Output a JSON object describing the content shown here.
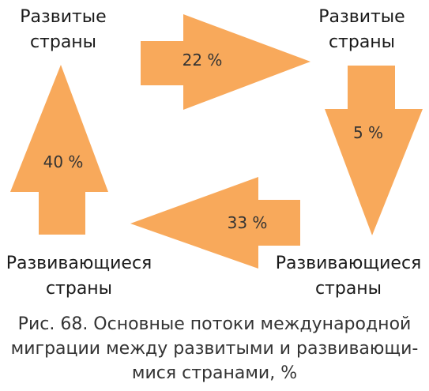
{
  "nodes": {
    "top_left": {
      "line1": "Развитые",
      "line2": "страны"
    },
    "top_right": {
      "line1": "Развитые",
      "line2": "страны"
    },
    "bottom_left": {
      "line1": "Развивающиеся",
      "line2": "страны"
    },
    "bottom_right": {
      "line1": "Развивающиеся",
      "line2": "страны"
    }
  },
  "flows": {
    "developed_to_developed": "22 %",
    "developed_to_developing": "5 %",
    "developing_to_developing": "33 %",
    "developing_to_developed": "40 %"
  },
  "colors": {
    "arrow_fill": "#F8A95B"
  },
  "caption": {
    "line1": "Рис. 68. Основные потоки международной",
    "line2": "миграции между развитыми и развивающи-",
    "line3": "мися странами, %"
  }
}
